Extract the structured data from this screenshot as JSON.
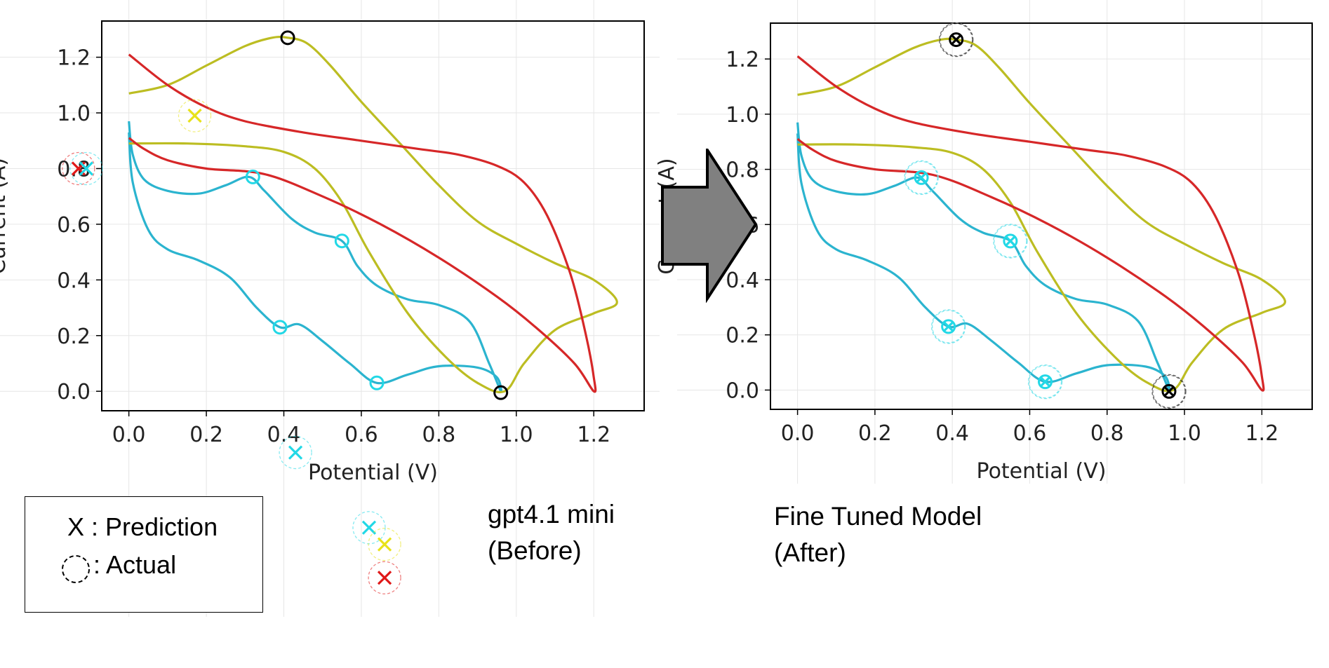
{
  "panels": [
    {
      "name": "before",
      "caption": [
        "gpt4.1 mini",
        "(Before)"
      ],
      "ylabel": "Current (A)"
    },
    {
      "name": "after",
      "caption": [
        "Fine Tuned Model",
        "(After)"
      ],
      "ylabel": "Current (A)"
    }
  ],
  "legend": {
    "prediction_label": "X : Prediction",
    "actual_label": ": Actual"
  },
  "colors": {
    "cyan_curve": "#2bb4cf",
    "olive_curve": "#bcbd22",
    "red_curve": "#d62728",
    "arrow_fill": "#808080"
  },
  "chart_data": [
    {
      "type": "line",
      "xlabel": "Potential (V)",
      "ylabel": "Current (A)",
      "xlim": [
        -0.07,
        1.33
      ],
      "ylim": [
        -0.07,
        1.33
      ],
      "xticks": [
        "0.0",
        "0.2",
        "0.4",
        "0.6",
        "0.8",
        "1.0",
        "1.2"
      ],
      "yticks": [
        "0.0",
        "0.2",
        "0.4",
        "0.6",
        "0.8",
        "1.0",
        "1.2"
      ],
      "series": [
        {
          "color": "cyan",
          "path": [
            [
              0.0,
              0.97
            ],
            [
              0.01,
              0.85
            ],
            [
              0.04,
              0.76
            ],
            [
              0.1,
              0.72
            ],
            [
              0.18,
              0.71
            ],
            [
              0.25,
              0.74
            ],
            [
              0.31,
              0.77
            ],
            [
              0.35,
              0.72
            ],
            [
              0.42,
              0.62
            ],
            [
              0.48,
              0.57
            ],
            [
              0.55,
              0.54
            ],
            [
              0.59,
              0.45
            ],
            [
              0.64,
              0.38
            ],
            [
              0.72,
              0.33
            ],
            [
              0.8,
              0.31
            ],
            [
              0.88,
              0.25
            ],
            [
              0.93,
              0.1
            ],
            [
              0.96,
              0.0
            ],
            [
              0.95,
              0.05
            ],
            [
              0.9,
              0.085
            ],
            [
              0.8,
              0.09
            ],
            [
              0.72,
              0.06
            ],
            [
              0.64,
              0.03
            ],
            [
              0.57,
              0.1
            ],
            [
              0.5,
              0.18
            ],
            [
              0.44,
              0.24
            ],
            [
              0.39,
              0.23
            ],
            [
              0.33,
              0.3
            ],
            [
              0.26,
              0.41
            ],
            [
              0.18,
              0.47
            ],
            [
              0.1,
              0.51
            ],
            [
              0.05,
              0.58
            ],
            [
              0.01,
              0.75
            ],
            [
              0.0,
              0.93
            ]
          ]
        },
        {
          "color": "olive",
          "path": [
            [
              0.0,
              1.07
            ],
            [
              0.1,
              1.1
            ],
            [
              0.2,
              1.17
            ],
            [
              0.3,
              1.24
            ],
            [
              0.37,
              1.27
            ],
            [
              0.41,
              1.27
            ],
            [
              0.46,
              1.25
            ],
            [
              0.52,
              1.17
            ],
            [
              0.6,
              1.04
            ],
            [
              0.7,
              0.89
            ],
            [
              0.8,
              0.74
            ],
            [
              0.9,
              0.61
            ],
            [
              1.0,
              0.53
            ],
            [
              1.1,
              0.46
            ],
            [
              1.2,
              0.4
            ],
            [
              1.26,
              0.32
            ],
            [
              1.2,
              0.28
            ],
            [
              1.1,
              0.22
            ],
            [
              1.02,
              0.1
            ],
            [
              0.97,
              0.0
            ],
            [
              0.9,
              0.03
            ],
            [
              0.82,
              0.12
            ],
            [
              0.72,
              0.28
            ],
            [
              0.62,
              0.5
            ],
            [
              0.55,
              0.68
            ],
            [
              0.48,
              0.8
            ],
            [
              0.4,
              0.86
            ],
            [
              0.3,
              0.88
            ],
            [
              0.15,
              0.89
            ],
            [
              0.0,
              0.89
            ]
          ]
        },
        {
          "color": "red",
          "path": [
            [
              0.0,
              1.21
            ],
            [
              0.1,
              1.1
            ],
            [
              0.2,
              1.02
            ],
            [
              0.3,
              0.97
            ],
            [
              0.45,
              0.93
            ],
            [
              0.6,
              0.9
            ],
            [
              0.75,
              0.87
            ],
            [
              0.85,
              0.85
            ],
            [
              0.95,
              0.81
            ],
            [
              1.02,
              0.75
            ],
            [
              1.08,
              0.63
            ],
            [
              1.14,
              0.42
            ],
            [
              1.18,
              0.2
            ],
            [
              1.2,
              0.05
            ],
            [
              1.2,
              0.0
            ],
            [
              1.15,
              0.1
            ],
            [
              1.05,
              0.23
            ],
            [
              0.95,
              0.34
            ],
            [
              0.8,
              0.48
            ],
            [
              0.65,
              0.6
            ],
            [
              0.5,
              0.7
            ],
            [
              0.35,
              0.78
            ],
            [
              0.2,
              0.8
            ],
            [
              0.1,
              0.83
            ],
            [
              0.04,
              0.87
            ],
            [
              0.0,
              0.91
            ]
          ]
        }
      ],
      "actual_markers": [
        {
          "color": "black",
          "x": 0.41,
          "y": 1.27
        },
        {
          "color": "black",
          "x": 0.96,
          "y": -0.005
        },
        {
          "color": "cyan",
          "x": 0.32,
          "y": 0.77
        },
        {
          "color": "cyan",
          "x": 0.55,
          "y": 0.54
        },
        {
          "color": "cyan",
          "x": 0.39,
          "y": 0.23
        },
        {
          "color": "cyan",
          "x": 0.64,
          "y": 0.03
        }
      ],
      "predictions": [
        {
          "color": "yellow",
          "x": 0.17,
          "y": 0.99
        },
        {
          "color": "red",
          "x": -0.13,
          "y": 0.8
        },
        {
          "color": "cyan",
          "x": -0.11,
          "y": 0.8
        },
        {
          "color": "cyan",
          "x": 0.43,
          "y": -0.22
        }
      ],
      "outside_predictions": [
        {
          "color": "cyan",
          "x": 0.62,
          "y": -0.49
        },
        {
          "color": "yellow",
          "x": 0.66,
          "y": -0.55
        },
        {
          "color": "red",
          "x": 0.66,
          "y": -0.67
        }
      ]
    },
    {
      "type": "line",
      "xlabel": "Potential (V)",
      "ylabel": "Current (A)",
      "xlim": [
        -0.07,
        1.33
      ],
      "ylim": [
        -0.07,
        1.33
      ],
      "xticks": [
        "0.0",
        "0.2",
        "0.4",
        "0.6",
        "0.8",
        "1.0",
        "1.2"
      ],
      "yticks": [
        "0.0",
        "0.2",
        "0.4",
        "0.6",
        "0.8",
        "1.0",
        "1.2"
      ],
      "series": [
        {
          "color": "cyan",
          "path": [
            [
              0.0,
              0.97
            ],
            [
              0.01,
              0.85
            ],
            [
              0.04,
              0.76
            ],
            [
              0.1,
              0.72
            ],
            [
              0.18,
              0.71
            ],
            [
              0.25,
              0.74
            ],
            [
              0.31,
              0.77
            ],
            [
              0.35,
              0.72
            ],
            [
              0.42,
              0.62
            ],
            [
              0.48,
              0.57
            ],
            [
              0.55,
              0.54
            ],
            [
              0.59,
              0.45
            ],
            [
              0.64,
              0.38
            ],
            [
              0.72,
              0.33
            ],
            [
              0.8,
              0.31
            ],
            [
              0.88,
              0.25
            ],
            [
              0.93,
              0.1
            ],
            [
              0.96,
              0.0
            ],
            [
              0.95,
              0.05
            ],
            [
              0.9,
              0.085
            ],
            [
              0.8,
              0.09
            ],
            [
              0.72,
              0.06
            ],
            [
              0.64,
              0.03
            ],
            [
              0.57,
              0.1
            ],
            [
              0.5,
              0.18
            ],
            [
              0.44,
              0.24
            ],
            [
              0.39,
              0.23
            ],
            [
              0.33,
              0.3
            ],
            [
              0.26,
              0.41
            ],
            [
              0.18,
              0.47
            ],
            [
              0.1,
              0.51
            ],
            [
              0.05,
              0.58
            ],
            [
              0.01,
              0.75
            ],
            [
              0.0,
              0.93
            ]
          ]
        },
        {
          "color": "olive",
          "path": [
            [
              0.0,
              1.07
            ],
            [
              0.1,
              1.1
            ],
            [
              0.2,
              1.17
            ],
            [
              0.3,
              1.24
            ],
            [
              0.37,
              1.27
            ],
            [
              0.41,
              1.27
            ],
            [
              0.46,
              1.25
            ],
            [
              0.52,
              1.17
            ],
            [
              0.6,
              1.04
            ],
            [
              0.7,
              0.89
            ],
            [
              0.8,
              0.74
            ],
            [
              0.9,
              0.61
            ],
            [
              1.0,
              0.53
            ],
            [
              1.1,
              0.46
            ],
            [
              1.2,
              0.4
            ],
            [
              1.26,
              0.32
            ],
            [
              1.2,
              0.28
            ],
            [
              1.1,
              0.22
            ],
            [
              1.02,
              0.1
            ],
            [
              0.97,
              0.0
            ],
            [
              0.9,
              0.03
            ],
            [
              0.82,
              0.12
            ],
            [
              0.72,
              0.28
            ],
            [
              0.62,
              0.5
            ],
            [
              0.55,
              0.68
            ],
            [
              0.48,
              0.8
            ],
            [
              0.4,
              0.86
            ],
            [
              0.3,
              0.88
            ],
            [
              0.15,
              0.89
            ],
            [
              0.0,
              0.89
            ]
          ]
        },
        {
          "color": "red",
          "path": [
            [
              0.0,
              1.21
            ],
            [
              0.1,
              1.1
            ],
            [
              0.2,
              1.02
            ],
            [
              0.3,
              0.97
            ],
            [
              0.45,
              0.93
            ],
            [
              0.6,
              0.9
            ],
            [
              0.75,
              0.87
            ],
            [
              0.85,
              0.85
            ],
            [
              0.95,
              0.81
            ],
            [
              1.02,
              0.75
            ],
            [
              1.08,
              0.63
            ],
            [
              1.14,
              0.42
            ],
            [
              1.18,
              0.2
            ],
            [
              1.2,
              0.05
            ],
            [
              1.2,
              0.0
            ],
            [
              1.15,
              0.1
            ],
            [
              1.05,
              0.23
            ],
            [
              0.95,
              0.34
            ],
            [
              0.8,
              0.48
            ],
            [
              0.65,
              0.6
            ],
            [
              0.5,
              0.7
            ],
            [
              0.35,
              0.78
            ],
            [
              0.2,
              0.8
            ],
            [
              0.1,
              0.83
            ],
            [
              0.04,
              0.87
            ],
            [
              0.0,
              0.91
            ]
          ]
        }
      ],
      "actual_markers": [
        {
          "color": "black",
          "x": 0.41,
          "y": 1.27
        },
        {
          "color": "black",
          "x": 0.96,
          "y": -0.005
        },
        {
          "color": "cyan",
          "x": 0.32,
          "y": 0.77
        },
        {
          "color": "cyan",
          "x": 0.55,
          "y": 0.54
        },
        {
          "color": "cyan",
          "x": 0.39,
          "y": 0.23
        },
        {
          "color": "cyan",
          "x": 0.64,
          "y": 0.03
        }
      ],
      "predictions": [
        {
          "color": "black",
          "x": 0.41,
          "y": 1.27
        },
        {
          "color": "black",
          "x": 0.96,
          "y": -0.005
        },
        {
          "color": "cyan",
          "x": 0.32,
          "y": 0.77
        },
        {
          "color": "cyan",
          "x": 0.55,
          "y": 0.54
        },
        {
          "color": "cyan",
          "x": 0.39,
          "y": 0.23
        },
        {
          "color": "cyan",
          "x": 0.64,
          "y": 0.03
        }
      ],
      "outside_predictions": []
    }
  ]
}
